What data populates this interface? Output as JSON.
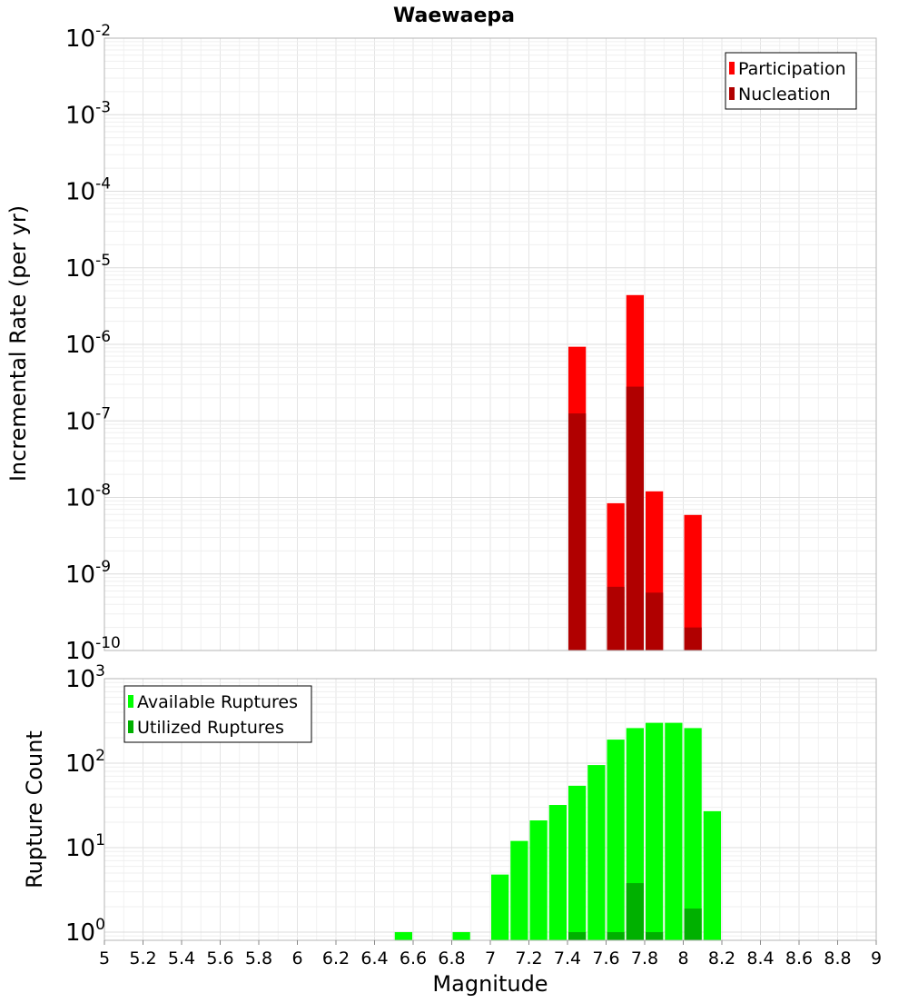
{
  "chart_data": [
    {
      "type": "bar",
      "title": "Waewaepa",
      "ylabel": "Incremental Rate (per yr)",
      "xlabel": "",
      "yscale": "log",
      "ylim": [
        1e-10,
        0.01
      ],
      "xlim": [
        5,
        9
      ],
      "y_tick_exponents": [
        "-2",
        "-3",
        "-4",
        "-5",
        "-6",
        "-7",
        "-8",
        "-9",
        "-10"
      ],
      "grid": true,
      "legend": "top-right",
      "series": [
        {
          "name": "Participation",
          "color": "#ff0000",
          "x": [
            7.45,
            7.65,
            7.75,
            7.85,
            8.05
          ],
          "values": [
            9.3e-07,
            8.4e-09,
            4.4e-06,
            1.2e-08,
            5.9e-09
          ]
        },
        {
          "name": "Nucleation",
          "color": "#b00000",
          "x": [
            7.45,
            7.65,
            7.75,
            7.85,
            8.05
          ],
          "values": [
            1.25e-07,
            6.8e-10,
            2.8e-07,
            5.7e-10,
            2e-10
          ]
        }
      ]
    },
    {
      "type": "bar",
      "title": "",
      "ylabel": "Rupture Count",
      "xlabel": "Magnitude",
      "yscale": "log",
      "ylim": [
        0.8,
        1000
      ],
      "xlim": [
        5,
        9
      ],
      "x_ticks": [
        "5",
        "5.2",
        "5.4",
        "5.6",
        "5.8",
        "6",
        "6.2",
        "6.4",
        "6.6",
        "6.8",
        "7",
        "7.2",
        "7.4",
        "7.6",
        "7.8",
        "8",
        "8.2",
        "8.4",
        "8.6",
        "8.8",
        "9"
      ],
      "y_tick_exponents": [
        "3",
        "2",
        "1",
        "0"
      ],
      "grid": true,
      "legend": "top-left",
      "series": [
        {
          "name": "Available Ruptures",
          "color": "#00ff00",
          "x": [
            6.55,
            6.85,
            7.05,
            7.15,
            7.25,
            7.35,
            7.45,
            7.55,
            7.65,
            7.75,
            7.85,
            7.95,
            8.05,
            8.15
          ],
          "values": [
            1,
            1,
            4.8,
            12,
            21,
            32,
            54,
            95,
            190,
            260,
            300,
            300,
            260,
            27
          ]
        },
        {
          "name": "Utilized Ruptures",
          "color": "#00b000",
          "x": [
            7.45,
            7.65,
            7.75,
            7.85,
            8.05
          ],
          "values": [
            1,
            1,
            3.8,
            1,
            1.9
          ]
        }
      ]
    }
  ]
}
